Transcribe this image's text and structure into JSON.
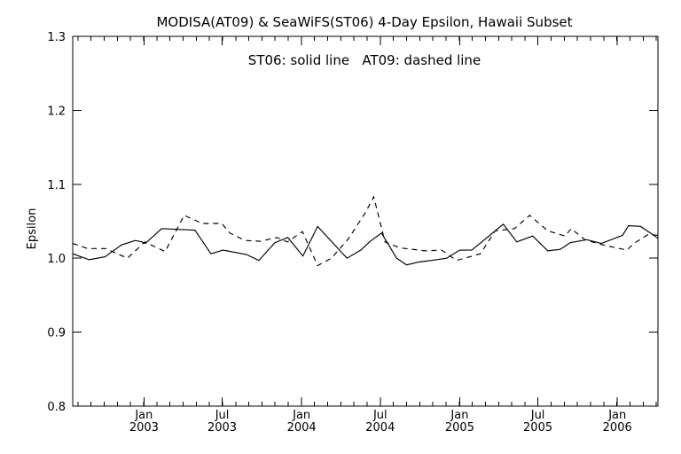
{
  "chart_data": {
    "type": "line",
    "title": "MODISA(AT09) & SeaWiFS(ST06) 4-Day Epsilon, Hawaii Subset",
    "annotation": "ST06: solid line   AT09: dashed line",
    "xlabel": "",
    "ylabel": "Epsilon",
    "xlim": [
      "2002-07-20",
      "2006-04-05"
    ],
    "ylim": [
      0.8,
      1.3
    ],
    "grid": false,
    "y_ticks": [
      {
        "value": 0.8,
        "label": "0.8"
      },
      {
        "value": 0.9,
        "label": "0.9"
      },
      {
        "value": 1.0,
        "label": "1.0"
      },
      {
        "value": 1.1,
        "label": "1.1"
      },
      {
        "value": 1.2,
        "label": "1.2"
      },
      {
        "value": 1.3,
        "label": "1.3"
      }
    ],
    "x_ticks": [
      {
        "date": "2003-01-01",
        "month": "Jan",
        "year": "2003"
      },
      {
        "date": "2003-07-01",
        "month": "Jul",
        "year": "2003"
      },
      {
        "date": "2004-01-01",
        "month": "Jan",
        "year": "2004"
      },
      {
        "date": "2004-07-01",
        "month": "Jul",
        "year": "2004"
      },
      {
        "date": "2005-01-01",
        "month": "Jan",
        "year": "2005"
      },
      {
        "date": "2005-07-01",
        "month": "Jul",
        "year": "2005"
      },
      {
        "date": "2006-01-01",
        "month": "Jan",
        "year": "2006"
      }
    ],
    "series": [
      {
        "line_style": "solid",
        "color": "#000000",
        "x": [
          "2002-07-20",
          "2002-08-27",
          "2002-10-03",
          "2002-11-10",
          "2002-12-12",
          "2002-12-27",
          "2003-01-04",
          "2003-02-11",
          "2003-04-29",
          "2003-06-05",
          "2003-07-03",
          "2003-08-26",
          "2003-09-24",
          "2003-10-31",
          "2003-11-30",
          "2004-01-04",
          "2004-02-07",
          "2004-04-15",
          "2004-05-17",
          "2004-06-08",
          "2004-07-04",
          "2004-08-08",
          "2004-08-31",
          "2004-09-30",
          "2004-10-28",
          "2004-12-02",
          "2005-01-01",
          "2005-01-29",
          "2005-04-12",
          "2005-05-13",
          "2005-06-19",
          "2005-07-24",
          "2005-08-22",
          "2005-09-14",
          "2005-10-22",
          "2005-11-25",
          "2006-01-13",
          "2006-01-27",
          "2006-02-24",
          "2006-04-05"
        ],
        "y": [
          1.006,
          0.998,
          1.002,
          1.018,
          1.024,
          1.022,
          1.02,
          1.04,
          1.038,
          1.006,
          1.011,
          1.005,
          0.997,
          1.021,
          1.028,
          1.003,
          1.043,
          1.0,
          1.011,
          1.023,
          1.034,
          1.0,
          0.991,
          0.995,
          0.997,
          1.0,
          1.011,
          1.011,
          1.046,
          1.022,
          1.03,
          1.01,
          1.012,
          1.021,
          1.025,
          1.02,
          1.031,
          1.044,
          1.043,
          1.027
        ]
      },
      {
        "line_style": "dashed",
        "color": "#000000",
        "x": [
          "2002-07-20",
          "2002-08-24",
          "2002-10-04",
          "2002-11-24",
          "2003-01-03",
          "2003-02-19",
          "2003-04-04",
          "2003-05-16",
          "2003-06-30",
          "2003-07-19",
          "2003-08-23",
          "2003-09-28",
          "2003-11-05",
          "2003-11-29",
          "2004-01-03",
          "2004-02-07",
          "2004-03-10",
          "2004-04-18",
          "2004-05-27",
          "2004-06-16",
          "2004-07-12",
          "2004-08-16",
          "2004-10-12",
          "2004-11-20",
          "2004-12-25",
          "2005-02-18",
          "2005-03-24",
          "2005-05-08",
          "2005-06-12",
          "2005-07-24",
          "2005-09-02",
          "2005-09-16",
          "2005-10-18",
          "2005-11-28",
          "2006-01-23",
          "2006-02-11",
          "2006-03-13",
          "2006-04-05"
        ],
        "y": [
          1.02,
          1.013,
          1.013,
          1.0,
          1.022,
          1.009,
          1.058,
          1.047,
          1.047,
          1.034,
          1.024,
          1.023,
          1.028,
          1.022,
          1.036,
          0.99,
          1.0,
          1.026,
          1.061,
          1.083,
          1.022,
          1.014,
          1.01,
          1.011,
          0.997,
          1.006,
          1.037,
          1.04,
          1.058,
          1.037,
          1.03,
          1.04,
          1.025,
          1.018,
          1.011,
          1.021,
          1.032,
          1.031
        ]
      }
    ]
  }
}
